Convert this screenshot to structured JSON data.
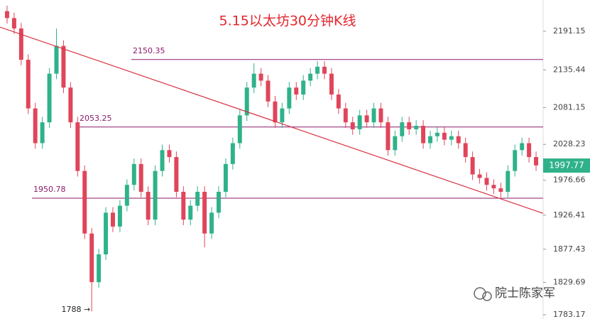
{
  "chart_data": {
    "type": "candlestick",
    "title": "5.15以太坊30分钟K线",
    "open": [
      2220,
      2210,
      2195,
      2150,
      2080,
      2030,
      2060,
      2130,
      2170,
      2110,
      2060,
      1990,
      1900,
      1830,
      1870,
      1930,
      1910,
      1940,
      1970,
      2000,
      1960,
      1920,
      1990,
      2020,
      2010,
      1960,
      1920,
      1940,
      1960,
      1900,
      1930,
      1960,
      2000,
      2030,
      2070,
      2110,
      2130,
      2120,
      2090,
      2060,
      2080,
      2110,
      2100,
      2120,
      2130,
      2140,
      2130,
      2100,
      2080,
      2060,
      2050,
      2070,
      2060,
      2080,
      2060,
      2020,
      2040,
      2060,
      2050,
      2055,
      2030,
      2040,
      2045,
      2035,
      2040,
      2030,
      2010,
      1985,
      1980,
      1970,
      1965,
      1960,
      1990,
      2020,
      2030,
      2010
    ],
    "high": [
      2228,
      2218,
      2203,
      2158,
      2088,
      2068,
      2138,
      2195,
      2178,
      2118,
      2068,
      1998,
      1908,
      1878,
      1938,
      1938,
      1948,
      1978,
      2008,
      2008,
      1968,
      1998,
      2028,
      2028,
      2018,
      1968,
      1948,
      1968,
      1968,
      1938,
      1968,
      2008,
      2038,
      2078,
      2118,
      2145,
      2138,
      2128,
      2098,
      2088,
      2118,
      2118,
      2128,
      2138,
      2148,
      2148,
      2138,
      2108,
      2088,
      2068,
      2078,
      2078,
      2088,
      2088,
      2068,
      2048,
      2068,
      2068,
      2063,
      2063,
      2048,
      2053,
      2053,
      2048,
      2048,
      2038,
      2018,
      1993,
      1988,
      1978,
      1973,
      1998,
      2028,
      2038,
      2038,
      2018
    ],
    "low": [
      2202,
      2187,
      2142,
      2072,
      2022,
      2022,
      2052,
      2122,
      2102,
      2052,
      1982,
      1892,
      1788,
      1822,
      1862,
      1902,
      1902,
      1932,
      1962,
      1952,
      1912,
      1912,
      1982,
      2002,
      1952,
      1912,
      1912,
      1932,
      1880,
      1892,
      1922,
      1952,
      1992,
      2022,
      2062,
      2102,
      2112,
      2082,
      2052,
      2052,
      2072,
      2092,
      2092,
      2112,
      2122,
      2122,
      2092,
      2072,
      2052,
      2042,
      2042,
      2052,
      2052,
      2052,
      2012,
      2012,
      2032,
      2042,
      2042,
      2022,
      2022,
      2032,
      2027,
      2027,
      2022,
      2002,
      1977,
      1972,
      1962,
      1957,
      1952,
      1952,
      1982,
      2012,
      2002,
      1990
    ],
    "close": [
      2210,
      2195,
      2150,
      2080,
      2030,
      2060,
      2130,
      2170,
      2110,
      2060,
      1990,
      1900,
      1830,
      1870,
      1930,
      1910,
      1940,
      1970,
      2000,
      1960,
      1920,
      1990,
      2020,
      2010,
      1960,
      1920,
      1940,
      1960,
      1900,
      1930,
      1960,
      2000,
      2030,
      2070,
      2110,
      2130,
      2120,
      2090,
      2060,
      2080,
      2110,
      2100,
      2120,
      2130,
      2140,
      2130,
      2100,
      2080,
      2060,
      2050,
      2070,
      2060,
      2080,
      2060,
      2020,
      2040,
      2060,
      2050,
      2055,
      2030,
      2040,
      2045,
      2035,
      2040,
      2030,
      2010,
      1985,
      1980,
      1970,
      1965,
      1960,
      1990,
      2020,
      2030,
      2010,
      1998
    ],
    "up_color": "#2fb28a",
    "down_color": "#e0455a",
    "ylim": [
      1777,
      2236
    ],
    "yticks": [
      2191.15,
      2135.44,
      2081.15,
      2028.23,
      1976.66,
      1926.41,
      1877.43,
      1829.69,
      1783.17
    ],
    "levels": [
      2150.35,
      2053.25,
      1950.78
    ],
    "level_color": "#8b1a6b",
    "trendline": [
      2197,
      1929
    ],
    "trendline_color": "#d9303f",
    "last_price": 1997.77,
    "low_annotation": "1788 →",
    "watermark": "院士陈家军"
  }
}
